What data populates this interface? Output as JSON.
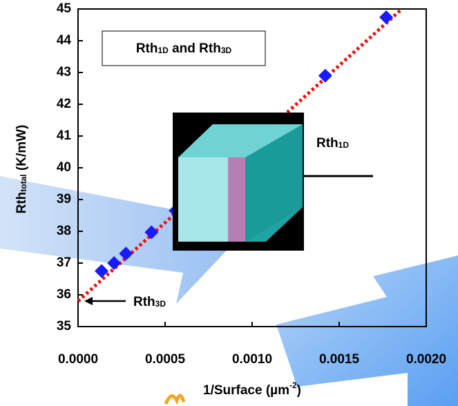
{
  "chart_data": {
    "type": "scatter",
    "x": [
      0.000135,
      0.000207,
      0.000275,
      0.000422,
      0.00056,
      0.00142,
      0.00177
    ],
    "values": [
      36.75,
      37.0,
      37.3,
      37.97,
      38.65,
      42.9,
      44.74
    ],
    "color": "#1a1aff",
    "trendline": {
      "x": [
        0,
        0.00186
      ],
      "values": [
        35.8,
        45
      ],
      "color": "#ee1111"
    },
    "xlim": [
      0,
      0.002
    ],
    "ylim": [
      35,
      45
    ],
    "xticks": [
      {
        "value": 0,
        "label": "0.0000"
      },
      {
        "value": 0.0005,
        "label": "0.0005"
      },
      {
        "value": 0.001,
        "label": "0.0010"
      },
      {
        "value": 0.0015,
        "label": "0.0015"
      },
      {
        "value": 0.002,
        "label": "0.0020"
      }
    ],
    "yticks": [
      35,
      36,
      37,
      38,
      39,
      40,
      41,
      42,
      43,
      44,
      45
    ],
    "x_label": [
      "1/Surface  (µm",
      "-2",
      ")"
    ],
    "y_label": [
      "Rth",
      "total",
      " (K/mW)"
    ],
    "box_label": [
      "Rth",
      "1D",
      " and Rth",
      "3D"
    ],
    "label_1d": [
      "Rth",
      "1D"
    ],
    "label_3d": [
      "Rth",
      "3D"
    ]
  }
}
